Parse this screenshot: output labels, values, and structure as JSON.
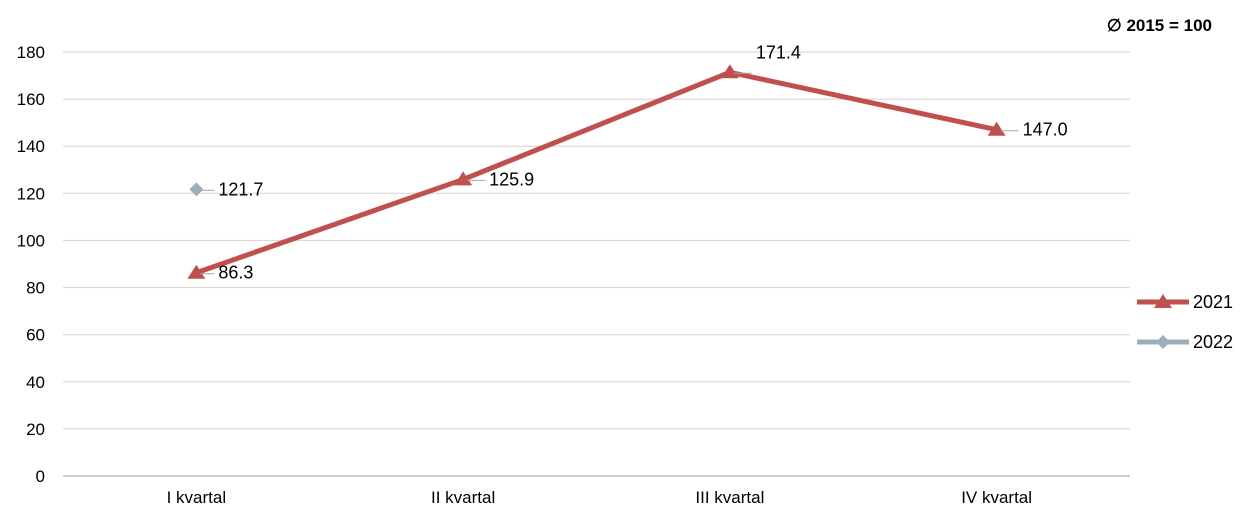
{
  "chart_data": {
    "type": "line",
    "note": "∅ 2015 = 100",
    "categories": [
      "I kvartal",
      "II kvartal",
      "III kvartal",
      "IV kvartal"
    ],
    "ylim": [
      0,
      180
    ],
    "yticks": [
      0,
      20,
      40,
      60,
      80,
      100,
      120,
      140,
      160,
      180
    ],
    "ytick_labels": [
      "0",
      "20",
      "40",
      "60",
      "80",
      "100",
      "120",
      "140",
      "160",
      "180"
    ],
    "grid": true,
    "legend_position": "right",
    "series": [
      {
        "name": "2021",
        "values": [
          86.3,
          125.9,
          171.4,
          147.0
        ],
        "labels": [
          "86.3",
          "125.9",
          "171.4",
          "147.0"
        ],
        "color": "#C0504D",
        "marker": "triangle"
      },
      {
        "name": "2022",
        "values": [
          121.7,
          null,
          null,
          null
        ],
        "labels": [
          "121.7",
          "",
          "",
          ""
        ],
        "color": "#9BAFB8",
        "marker": "diamond"
      }
    ]
  }
}
